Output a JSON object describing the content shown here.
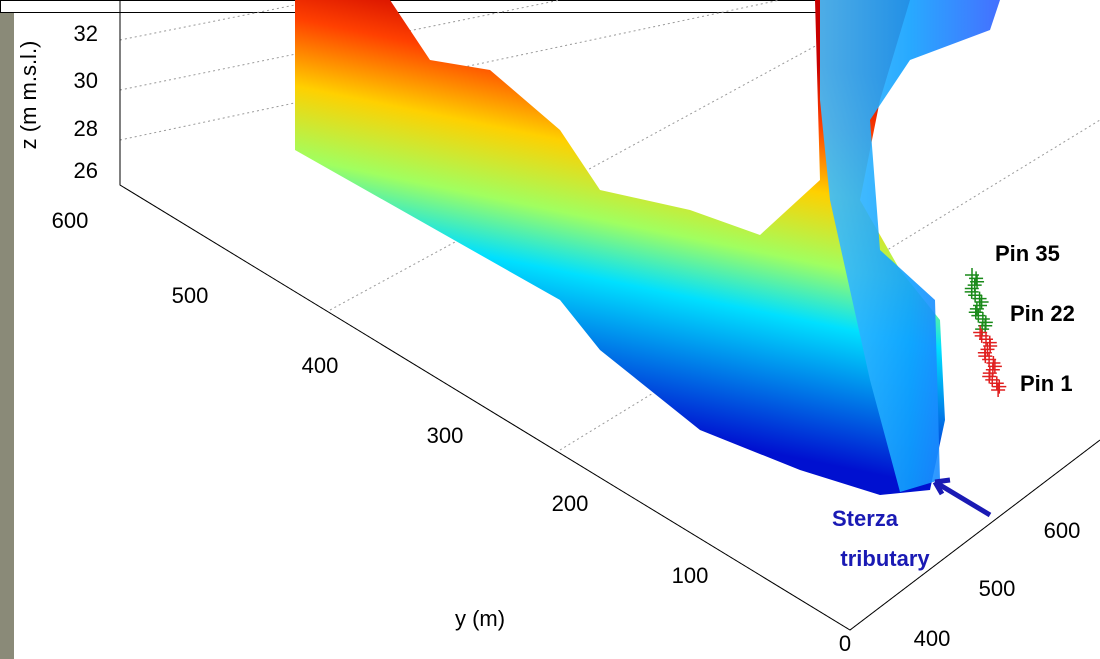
{
  "z_axis": {
    "label": "z (m m.s.l.)",
    "ticks": [
      "26",
      "28",
      "30",
      "32"
    ]
  },
  "y_axis": {
    "label": "y (m)",
    "ticks": [
      "0",
      "100",
      "200",
      "300",
      "400",
      "500",
      "600"
    ]
  },
  "x_axis": {
    "ticks": [
      "400",
      "500",
      "600"
    ]
  },
  "annotations": {
    "pins": [
      "Pin 35",
      "Pin 22",
      "Pin 1"
    ],
    "tributary": [
      "Sterza",
      "tributary"
    ]
  }
}
